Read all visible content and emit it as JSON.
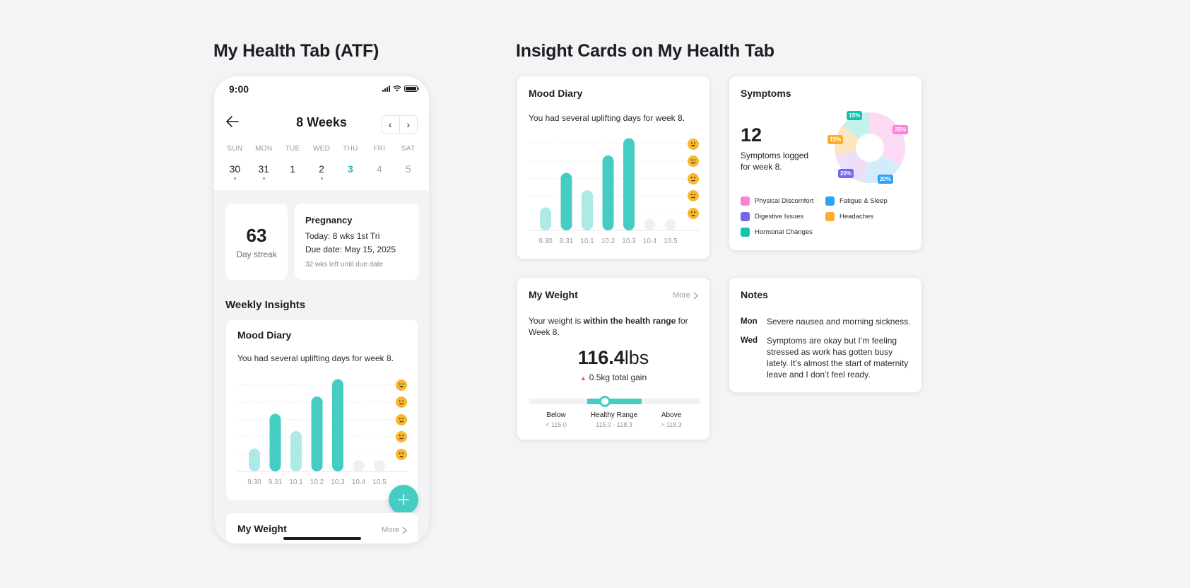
{
  "left_heading": "My Health Tab (ATF)",
  "right_heading": "Insight Cards on My Health Tab",
  "phone": {
    "status_time": "9:00",
    "header_title": "8 Weeks",
    "prev_label": "‹",
    "next_label": "›",
    "days": [
      {
        "name": "SUN",
        "date": "30",
        "state": "past",
        "logged": true
      },
      {
        "name": "MON",
        "date": "31",
        "state": "past",
        "logged": true
      },
      {
        "name": "TUE",
        "date": "1",
        "state": "past",
        "logged": false
      },
      {
        "name": "WED",
        "date": "2",
        "state": "past",
        "logged": true
      },
      {
        "name": "THU",
        "date": "3",
        "state": "today",
        "logged": false
      },
      {
        "name": "FRI",
        "date": "4",
        "state": "future",
        "logged": false
      },
      {
        "name": "SAT",
        "date": "5",
        "state": "future",
        "logged": false
      }
    ],
    "streak": {
      "value": "63",
      "label": "Day streak"
    },
    "pregnancy": {
      "title": "Pregnancy",
      "today": "Today: 8 wks 1st Tri",
      "due": "Due date: May 15, 2025",
      "left": "32 wks left until due date"
    },
    "weekly_insights_title": "Weekly Insights",
    "weight_preview": {
      "title": "My Weight",
      "more": "More"
    }
  },
  "mood_card": {
    "title": "Mood Diary",
    "subtitle": "You had several uplifting days for week 8."
  },
  "symptoms_card": {
    "title": "Symptoms",
    "count": "12",
    "count_label": "Symptoms logged for week 8."
  },
  "weight_card": {
    "title": "My Weight",
    "more": "More",
    "sub_before": "Your weight is ",
    "sub_bold": "within the health range",
    "sub_after": " for Week 8.",
    "value": "116.4",
    "unit": "lbs",
    "gain": "0.5kg total gain",
    "range": {
      "below_label": "Below",
      "below_value": "< 115.0",
      "healthy_label": "Healthy Range",
      "healthy_value": "115.0 - 118.3",
      "above_label": "Above",
      "above_value": "> 118.3"
    },
    "current_lbs": 116.4
  },
  "notes_card": {
    "title": "Notes",
    "entries": [
      {
        "day": "Mon",
        "text": "Severe nausea and morning sickness."
      },
      {
        "day": "Wed",
        "text": "Symptoms are okay but I’m feeling stressed as work has gotten busy lately. It’s almost the start of maternity leave and I don’t feel ready."
      }
    ]
  },
  "colors": {
    "teal": "#45cdc4",
    "teal_light": "#aeeae5",
    "empty": "#f0f0f3",
    "today": "#18b9b1",
    "emoji": "#f7b731",
    "gain_up": "#ef4e63"
  },
  "chart_data": [
    {
      "type": "bar",
      "title": "Mood Diary",
      "categories": [
        "9.30",
        "9.31",
        "10.1",
        "10.2",
        "10.3",
        "10.4",
        "10.5"
      ],
      "values": [
        1,
        3,
        2,
        4,
        5,
        0,
        0
      ],
      "highlight": [
        false,
        true,
        false,
        true,
        true,
        false,
        false
      ],
      "ylim": [
        0,
        5
      ],
      "y_levels": [
        "very-sad",
        "sad",
        "neutral",
        "happy",
        "very-happy"
      ],
      "grid": true
    },
    {
      "type": "pie",
      "title": "Symptoms",
      "donut": true,
      "slices": [
        {
          "label": "Physical Discomfort",
          "value": 35,
          "color": "#ff80dc",
          "fill": "#fcdaf4"
        },
        {
          "label": "Fatigue & Sleep",
          "value": 20,
          "color": "#2ea3f6",
          "fill": "#d3ecfb"
        },
        {
          "label": "Digestive Issues",
          "value": 20,
          "color": "#7466f2",
          "fill": "#eedff8"
        },
        {
          "label": "Headaches",
          "value": 15,
          "color": "#fbad2d",
          "fill": "#fde5bd"
        },
        {
          "label": "Hormonal Changes",
          "value": 15,
          "color": "#12c4b0",
          "fill": "#c6f1eb"
        }
      ],
      "legend_order": [
        "Physical Discomfort",
        "Fatigue & Sleep",
        "Digestive Issues",
        "Headaches",
        "Hormonal Changes"
      ]
    }
  ]
}
